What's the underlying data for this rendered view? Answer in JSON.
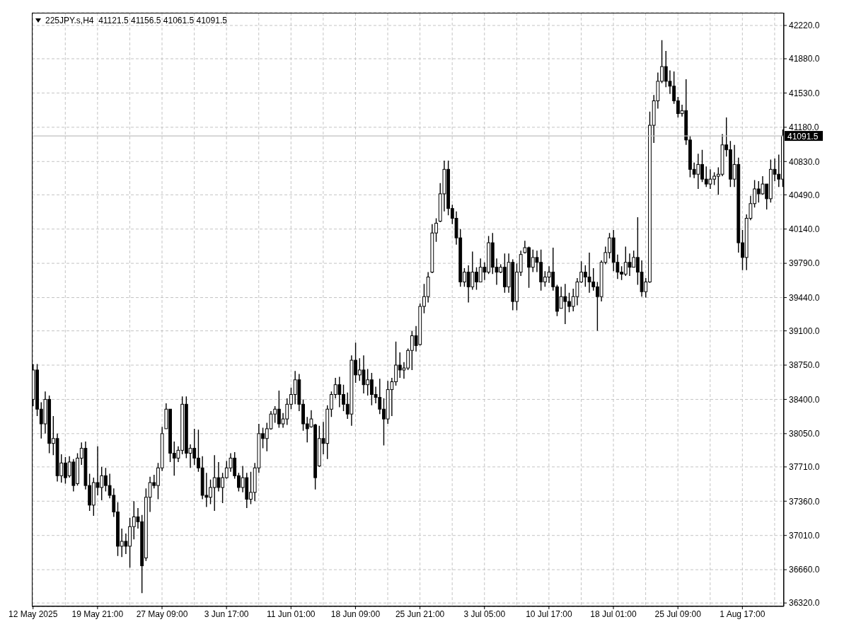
{
  "chart_data": {
    "type": "candlestick",
    "title": "225JPY.s,H4  41121.5 41156.5 41061.5 41091.5",
    "color": "#000000",
    "categories": [
      "12 May 2025",
      null,
      null,
      null,
      null,
      null,
      null,
      null,
      null,
      null,
      null,
      null,
      null,
      null,
      null,
      null,
      "19 May 21:00",
      null,
      null,
      null,
      null,
      null,
      null,
      null,
      null,
      null,
      null,
      null,
      null,
      null,
      null,
      null,
      "27 May 09:00",
      null,
      null,
      null,
      null,
      null,
      null,
      null,
      null,
      null,
      null,
      null,
      null,
      null,
      null,
      null,
      "3 Jun 17:00",
      null,
      null,
      null,
      null,
      null,
      null,
      null,
      null,
      null,
      null,
      null,
      null,
      null,
      null,
      null,
      "11 Jun 01:00",
      null,
      null,
      null,
      null,
      null,
      null,
      null,
      null,
      null,
      null,
      null,
      null,
      null,
      null,
      null,
      "18 Jun 09:00",
      null,
      null,
      null,
      null,
      null,
      null,
      null,
      null,
      null,
      null,
      null,
      null,
      null,
      null,
      null,
      "25 Jun 21:00",
      null,
      null,
      null,
      null,
      null,
      null,
      null,
      null,
      null,
      null,
      null,
      null,
      null,
      null,
      null,
      "3 Jul 05:00",
      null,
      null,
      null,
      null,
      null,
      null,
      null,
      null,
      null,
      null,
      null,
      null,
      null,
      null,
      null,
      "10 Jul 17:00",
      null,
      null,
      null,
      null,
      null,
      null,
      null,
      null,
      null,
      null,
      null,
      null,
      null,
      null,
      null,
      "18 Jul 01:00",
      null,
      null,
      null,
      null,
      null,
      null,
      null,
      null,
      null,
      null,
      null,
      null,
      null,
      null,
      null,
      "25 Jul 09:00",
      null,
      null,
      null,
      null,
      null,
      null,
      null,
      null,
      null,
      null,
      null,
      null,
      null,
      null,
      null,
      "1 Aug 17:00",
      null,
      null,
      null,
      null,
      null,
      null,
      null,
      null,
      null,
      null
    ],
    "ohlc": [
      [
        38400,
        38760,
        38330,
        38700
      ],
      [
        38700,
        38760,
        38230,
        38300
      ],
      [
        38300,
        38370,
        38000,
        38150
      ],
      [
        38150,
        38480,
        38050,
        38400
      ],
      [
        38400,
        38440,
        37850,
        37950
      ],
      [
        37950,
        38230,
        37830,
        38000
      ],
      [
        38000,
        38050,
        37560,
        37620
      ],
      [
        37620,
        37840,
        37550,
        37750
      ],
      [
        37750,
        37810,
        37540,
        37600
      ],
      [
        37620,
        37820,
        37600,
        37760
      ],
      [
        37760,
        37790,
        37460,
        37520
      ],
      [
        37540,
        37850,
        37520,
        37800
      ],
      [
        37800,
        37960,
        37730,
        37900
      ],
      [
        37900,
        37970,
        37480,
        37520
      ],
      [
        37520,
        37640,
        37260,
        37320
      ],
      [
        37320,
        37600,
        37210,
        37550
      ],
      [
        37550,
        37920,
        37420,
        37500
      ],
      [
        37500,
        37710,
        37370,
        37620
      ],
      [
        37620,
        37700,
        37460,
        37520
      ],
      [
        37520,
        37640,
        37390,
        37420
      ],
      [
        37420,
        37490,
        37200,
        37250
      ],
      [
        37250,
        37350,
        36800,
        36900
      ],
      [
        36900,
        37080,
        36790,
        36950
      ],
      [
        36950,
        37030,
        36820,
        36900
      ],
      [
        36900,
        37190,
        36680,
        37100
      ],
      [
        37100,
        37360,
        36970,
        37200
      ],
      [
        37200,
        37290,
        37080,
        37150
      ],
      [
        37150,
        37220,
        36420,
        36700
      ],
      [
        36780,
        37490,
        36750,
        37400
      ],
      [
        37400,
        37610,
        37250,
        37550
      ],
      [
        37550,
        37630,
        37490,
        37520
      ],
      [
        37520,
        37750,
        37380,
        37700
      ],
      [
        37700,
        38120,
        37670,
        38050
      ],
      [
        38100,
        38360,
        38100,
        38300
      ],
      [
        38300,
        38300,
        37760,
        37850
      ],
      [
        37850,
        37970,
        37620,
        37800
      ],
      [
        37800,
        37920,
        37760,
        37880
      ],
      [
        37880,
        38430,
        37840,
        38350
      ],
      [
        38350,
        38430,
        37800,
        37850
      ],
      [
        37850,
        37940,
        37700,
        37900
      ],
      [
        37900,
        38100,
        37730,
        37800
      ],
      [
        37800,
        38090,
        37660,
        37700
      ],
      [
        37700,
        37820,
        37380,
        37420
      ],
      [
        37420,
        37650,
        37300,
        37400
      ],
      [
        37400,
        37580,
        37330,
        37500
      ],
      [
        37500,
        37830,
        37260,
        37600
      ],
      [
        37600,
        37760,
        37460,
        37500
      ],
      [
        37500,
        37650,
        37340,
        37600
      ],
      [
        37600,
        37770,
        37590,
        37700
      ],
      [
        37700,
        37850,
        37660,
        37800
      ],
      [
        37800,
        37860,
        37590,
        37620
      ],
      [
        37620,
        37650,
        37460,
        37500
      ],
      [
        37500,
        37720,
        37450,
        37600
      ],
      [
        37600,
        37650,
        37290,
        37380
      ],
      [
        37380,
        37660,
        37330,
        37450
      ],
      [
        37450,
        37750,
        37360,
        37700
      ],
      [
        37700,
        38150,
        37650,
        38050
      ],
      [
        38050,
        38110,
        37900,
        38000
      ],
      [
        38000,
        38160,
        37870,
        38100
      ],
      [
        38100,
        38280,
        38090,
        38250
      ],
      [
        38250,
        38330,
        38160,
        38300
      ],
      [
        38300,
        38490,
        38110,
        38150
      ],
      [
        38150,
        38260,
        38110,
        38200
      ],
      [
        38200,
        38410,
        38140,
        38350
      ],
      [
        38350,
        38520,
        38300,
        38450
      ],
      [
        38450,
        38690,
        38350,
        38600
      ],
      [
        38600,
        38660,
        38280,
        38350
      ],
      [
        38350,
        38400,
        38080,
        38150
      ],
      [
        38150,
        38220,
        37960,
        38100
      ],
      [
        38120,
        38290,
        38110,
        38200
      ],
      [
        38140,
        38150,
        37480,
        37600
      ],
      [
        37720,
        38130,
        37710,
        38000
      ],
      [
        38000,
        38170,
        37840,
        37950
      ],
      [
        37950,
        38340,
        37790,
        38300
      ],
      [
        38300,
        38480,
        38220,
        38450
      ],
      [
        38450,
        38620,
        38410,
        38550
      ],
      [
        38550,
        38630,
        38320,
        38450
      ],
      [
        38450,
        38550,
        38280,
        38350
      ],
      [
        38350,
        38470,
        38200,
        38250
      ],
      [
        38250,
        38850,
        38130,
        38800
      ],
      [
        38800,
        38980,
        38570,
        38650
      ],
      [
        38650,
        38820,
        38590,
        38700
      ],
      [
        38700,
        38850,
        38460,
        38550
      ],
      [
        38550,
        38710,
        38440,
        38600
      ],
      [
        38600,
        38670,
        38340,
        38450
      ],
      [
        38450,
        38530,
        38360,
        38420
      ],
      [
        38420,
        38610,
        38250,
        38300
      ],
      [
        38300,
        38410,
        37930,
        38200
      ],
      [
        38200,
        38590,
        38150,
        38500
      ],
      [
        38500,
        38620,
        38230,
        38580
      ],
      [
        38580,
        38990,
        38540,
        38750
      ],
      [
        38750,
        38880,
        38620,
        38700
      ],
      [
        38700,
        38780,
        38610,
        38720
      ],
      [
        38720,
        38920,
        38700,
        38900
      ],
      [
        38900,
        39100,
        38700,
        39050
      ],
      [
        39050,
        39150,
        38890,
        38950
      ],
      [
        38960,
        39380,
        38950,
        39350
      ],
      [
        39350,
        39580,
        39280,
        39450
      ],
      [
        39450,
        39700,
        39390,
        39650
      ],
      [
        39700,
        40190,
        39690,
        40100
      ],
      [
        40100,
        40250,
        40010,
        40200
      ],
      [
        40220,
        40610,
        40210,
        40500
      ],
      [
        40500,
        40840,
        40320,
        40750
      ],
      [
        40750,
        40840,
        40280,
        40350
      ],
      [
        40350,
        40390,
        40190,
        40250
      ],
      [
        40250,
        40320,
        39980,
        40050
      ],
      [
        40050,
        40140,
        39550,
        39600
      ],
      [
        39600,
        39740,
        39550,
        39700
      ],
      [
        39700,
        39770,
        39390,
        39550
      ],
      [
        39550,
        39910,
        39520,
        39700
      ],
      [
        39700,
        39750,
        39520,
        39600
      ],
      [
        39600,
        39840,
        39600,
        39750
      ],
      [
        39750,
        39800,
        39620,
        39700
      ],
      [
        39700,
        40070,
        39680,
        40000
      ],
      [
        40000,
        40100,
        39680,
        39750
      ],
      [
        39750,
        39840,
        39570,
        39700
      ],
      [
        39700,
        39780,
        39690,
        39750
      ],
      [
        39750,
        39890,
        39490,
        39550
      ],
      [
        39550,
        39890,
        39490,
        39800
      ],
      [
        39800,
        39830,
        39310,
        39400
      ],
      [
        39400,
        39790,
        39310,
        39700
      ],
      [
        39700,
        39920,
        39660,
        39880
      ],
      [
        39900,
        40020,
        39890,
        39950
      ],
      [
        39950,
        39960,
        39540,
        39750
      ],
      [
        39750,
        39930,
        39700,
        39850
      ],
      [
        39850,
        39920,
        39700,
        39800
      ],
      [
        39800,
        39930,
        39510,
        39600
      ],
      [
        39600,
        39710,
        39550,
        39650
      ],
      [
        39650,
        39760,
        39590,
        39700
      ],
      [
        39700,
        39950,
        39510,
        39550
      ],
      [
        39550,
        39570,
        39250,
        39300
      ],
      [
        39330,
        39550,
        39330,
        39450
      ],
      [
        39450,
        39580,
        39170,
        39400
      ],
      [
        39400,
        39490,
        39290,
        39350
      ],
      [
        39350,
        39530,
        39300,
        39450
      ],
      [
        39450,
        39640,
        39360,
        39600
      ],
      [
        39600,
        39810,
        39590,
        39700
      ],
      [
        39700,
        39770,
        39550,
        39650
      ],
      [
        39650,
        39900,
        39490,
        39600
      ],
      [
        39600,
        39740,
        39510,
        39550
      ],
      [
        39550,
        39600,
        39100,
        39450
      ],
      [
        39450,
        39820,
        39400,
        39800
      ],
      [
        39800,
        39960,
        39780,
        39900
      ],
      [
        39900,
        40100,
        39840,
        40050
      ],
      [
        40050,
        40130,
        39710,
        39800
      ],
      [
        39800,
        39880,
        39630,
        39700
      ],
      [
        39700,
        39760,
        39620,
        39680
      ],
      [
        39680,
        39960,
        39660,
        39800
      ],
      [
        39800,
        39890,
        39660,
        39750
      ],
      [
        39750,
        39920,
        39750,
        39850
      ],
      [
        39850,
        40260,
        39570,
        39700
      ],
      [
        39700,
        39820,
        39450,
        39500
      ],
      [
        39500,
        39640,
        39440,
        39600
      ],
      [
        39600,
        41340,
        39590,
        41200
      ],
      [
        41200,
        41510,
        41020,
        41450
      ],
      [
        41450,
        41740,
        41370,
        41650
      ],
      [
        41650,
        42070,
        41630,
        41800
      ],
      [
        41800,
        41960,
        41590,
        41650
      ],
      [
        41650,
        41760,
        41520,
        41600
      ],
      [
        41600,
        41750,
        41420,
        41450
      ],
      [
        41450,
        41490,
        41280,
        41320
      ],
      [
        41320,
        41410,
        41290,
        41350
      ],
      [
        41350,
        41670,
        41000,
        41050
      ],
      [
        41050,
        41090,
        40670,
        40750
      ],
      [
        40750,
        40820,
        40660,
        40700
      ],
      [
        40700,
        40910,
        40550,
        40800
      ],
      [
        40800,
        40950,
        40620,
        40650
      ],
      [
        40650,
        40780,
        40570,
        40600
      ],
      [
        40600,
        40750,
        40550,
        40650
      ],
      [
        40650,
        40720,
        40590,
        40680
      ],
      [
        40680,
        40770,
        40490,
        40700
      ],
      [
        40700,
        41110,
        40680,
        41000
      ],
      [
        41000,
        41280,
        40880,
        40950
      ],
      [
        40950,
        41040,
        40570,
        40650
      ],
      [
        40650,
        41000,
        40570,
        40800
      ],
      [
        40800,
        40870,
        39900,
        40000
      ],
      [
        40000,
        40130,
        39720,
        39850
      ],
      [
        39850,
        40290,
        39720,
        40250
      ],
      [
        40250,
        40480,
        40230,
        40400
      ],
      [
        40400,
        40640,
        40360,
        40550
      ],
      [
        40550,
        40630,
        40410,
        40500
      ],
      [
        40500,
        40680,
        40490,
        40600
      ],
      [
        40600,
        40600,
        40340,
        40450
      ],
      [
        40450,
        40850,
        40410,
        40750
      ],
      [
        40750,
        40860,
        40630,
        40700
      ],
      [
        40700,
        40900,
        40570,
        40650
      ],
      [
        40650,
        41156.5,
        40570,
        41091.5
      ]
    ],
    "ylim": [
      36285,
      42350
    ],
    "yticks": [
      {
        "value": 36320,
        "label": "36320.0"
      },
      {
        "value": 36660,
        "label": "36660.0"
      },
      {
        "value": 37010,
        "label": "37010.0"
      },
      {
        "value": 37360,
        "label": "37360.0"
      },
      {
        "value": 37710,
        "label": "37710.0"
      },
      {
        "value": 38050,
        "label": "38050.0"
      },
      {
        "value": 38400,
        "label": "38400.0"
      },
      {
        "value": 38750,
        "label": "38750.0"
      },
      {
        "value": 39100,
        "label": "39100.0"
      },
      {
        "value": 39440,
        "label": "39440.0"
      },
      {
        "value": 39790,
        "label": "39790.0"
      },
      {
        "value": 40140,
        "label": "40140.0"
      },
      {
        "value": 40490,
        "label": "40490.0"
      },
      {
        "value": 40830,
        "label": "40830.0"
      },
      {
        "value": 41180,
        "label": "41180.0"
      },
      {
        "value": 41530,
        "label": "41530.0"
      },
      {
        "value": 41880,
        "label": "41880.0"
      },
      {
        "value": 42220,
        "label": "42220.0"
      }
    ],
    "grid": true,
    "ref_lines": [
      {
        "axis": "y",
        "value": 41091.5,
        "label": "41091.5",
        "color": "#c0c0c0",
        "line_style": "solid"
      }
    ]
  }
}
